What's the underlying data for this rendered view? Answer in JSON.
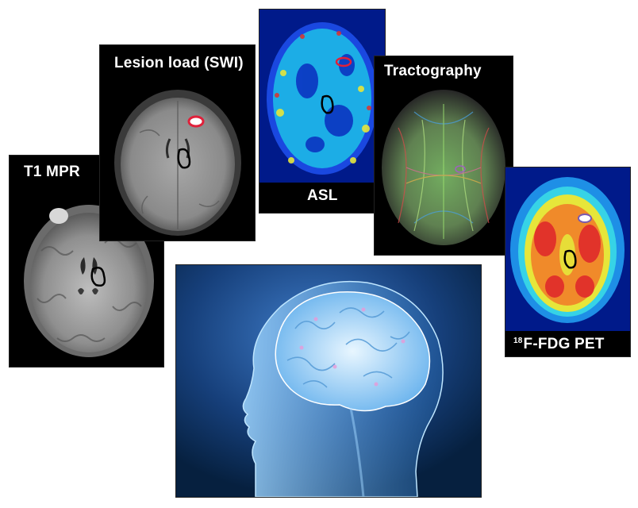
{
  "panels": {
    "t1": {
      "label": "T1 MPR"
    },
    "swi": {
      "label": "Lesion load (SWI)"
    },
    "asl": {
      "label": "ASL"
    },
    "tractography": {
      "label": "Tractography"
    },
    "pet": {
      "label_sup": "18",
      "label_main": "F-FDG PET"
    }
  },
  "colors": {
    "lesion_outline": "#e0203a",
    "roi_outline": "#000000",
    "head_background": "#0b2a55",
    "head_glow": "#7ec8ff"
  }
}
